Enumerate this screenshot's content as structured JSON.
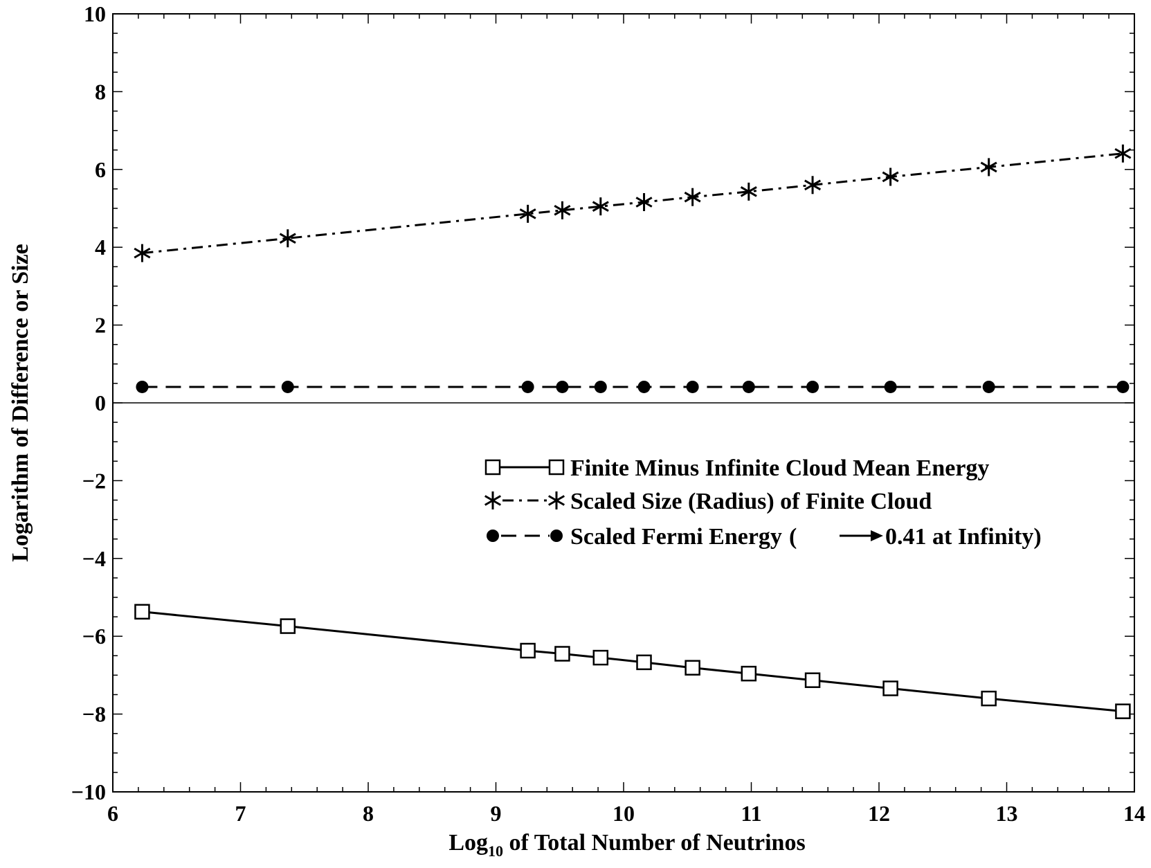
{
  "chart_data": {
    "type": "line",
    "title": "",
    "xlabel": {
      "prefix": "Log",
      "subscript": "10",
      "suffix": " of Total Number of Neutrinos"
    },
    "ylabel": "Logarithm of Difference or Size",
    "xlim": [
      6,
      14
    ],
    "ylim": [
      -10,
      10
    ],
    "x_ticks": [
      {
        "value": 6,
        "label": "6"
      },
      {
        "value": 7,
        "label": "7"
      },
      {
        "value": 8,
        "label": "8"
      },
      {
        "value": 9,
        "label": "9"
      },
      {
        "value": 10,
        "label": "10"
      },
      {
        "value": 11,
        "label": "11"
      },
      {
        "value": 12,
        "label": "12"
      },
      {
        "value": 13,
        "label": "13"
      },
      {
        "value": 14,
        "label": "14"
      }
    ],
    "y_ticks": [
      {
        "value": 10,
        "label": "10"
      },
      {
        "value": 8,
        "label": "8"
      },
      {
        "value": 6,
        "label": "6"
      },
      {
        "value": 4,
        "label": "4"
      },
      {
        "value": 2,
        "label": "2"
      },
      {
        "value": 0,
        "label": "0"
      },
      {
        "value": -2,
        "label": "−2"
      },
      {
        "value": -4,
        "label": "−4"
      },
      {
        "value": -6,
        "label": "−6"
      },
      {
        "value": -8,
        "label": "−8"
      },
      {
        "value": -10,
        "label": "−10"
      }
    ],
    "x_minor_step": 0.2,
    "y_minor_step": 0.5,
    "zero_line": true,
    "grid": false,
    "legend_position": "center-right",
    "x": [
      6.23,
      7.37,
      9.25,
      9.52,
      9.82,
      10.16,
      10.54,
      10.98,
      11.48,
      12.09,
      12.86,
      13.91
    ],
    "series": [
      {
        "name": "Finite Minus Infinite Cloud Mean Energy",
        "marker": "open-square",
        "line": "solid",
        "values": [
          -5.37,
          -5.74,
          -6.37,
          -6.45,
          -6.55,
          -6.67,
          -6.81,
          -6.96,
          -7.13,
          -7.34,
          -7.6,
          -7.93
        ]
      },
      {
        "name": "Scaled Size (Radius) of Finite Cloud",
        "marker": "asterisk",
        "line": "dash-dot",
        "values": [
          3.85,
          4.23,
          4.86,
          4.95,
          5.05,
          5.16,
          5.29,
          5.43,
          5.6,
          5.81,
          6.06,
          6.41
        ]
      },
      {
        "name": "Scaled Fermi Energy",
        "legend_suffix": "0.41 at Infinity)",
        "legend_prefix": "(",
        "marker": "filled-circle",
        "line": "dashed",
        "values": [
          0.41,
          0.41,
          0.41,
          0.41,
          0.41,
          0.41,
          0.41,
          0.41,
          0.41,
          0.41,
          0.41,
          0.41
        ]
      }
    ]
  }
}
